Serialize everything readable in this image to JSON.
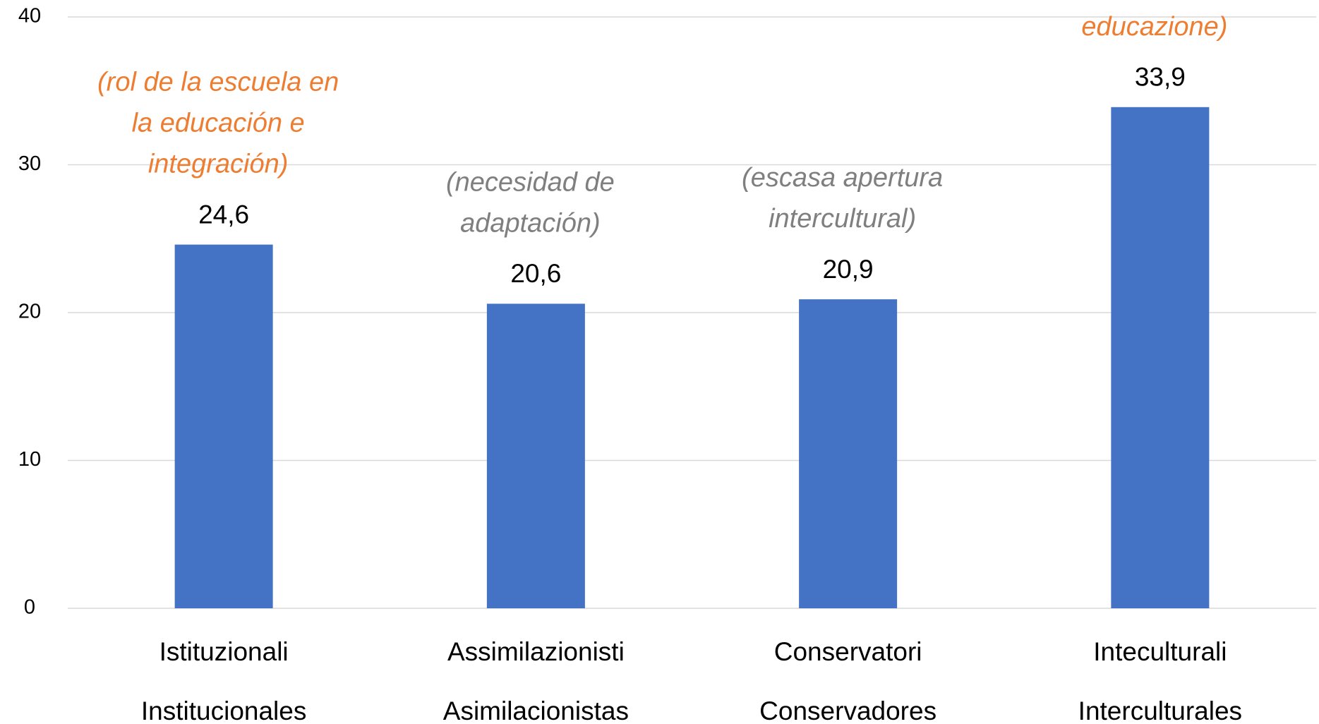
{
  "chart_data": {
    "type": "bar",
    "categories": [
      [
        "Istituzionali",
        "Institucionales"
      ],
      [
        "Assimilazionisti",
        "Asimilacionistas"
      ],
      [
        "Conservatori",
        "Conservadores"
      ],
      [
        "Inteculturali",
        "Interculturales"
      ]
    ],
    "values": [
      24.6,
      20.6,
      20.9,
      33.9
    ],
    "value_labels": [
      "24,6",
      "20,6",
      "20,9",
      "33,9"
    ],
    "annotations": [
      {
        "lines": [
          "(rol de la escuela en",
          "la educación e",
          "integración)"
        ],
        "color": "#ed7d31"
      },
      {
        "lines": [
          "(necesidad de",
          "adaptación)"
        ],
        "color": "#7f7f7f"
      },
      {
        "lines": [
          "(escasa apertura",
          "intercultural)"
        ],
        "color": "#7f7f7f"
      },
      {
        "lines": [
          "educazione)"
        ],
        "color": "#ed7d31"
      }
    ],
    "color": "#4472c4",
    "ylim": [
      0,
      40
    ],
    "yticks": [
      0,
      10,
      20,
      30,
      40
    ],
    "grid": true
  }
}
